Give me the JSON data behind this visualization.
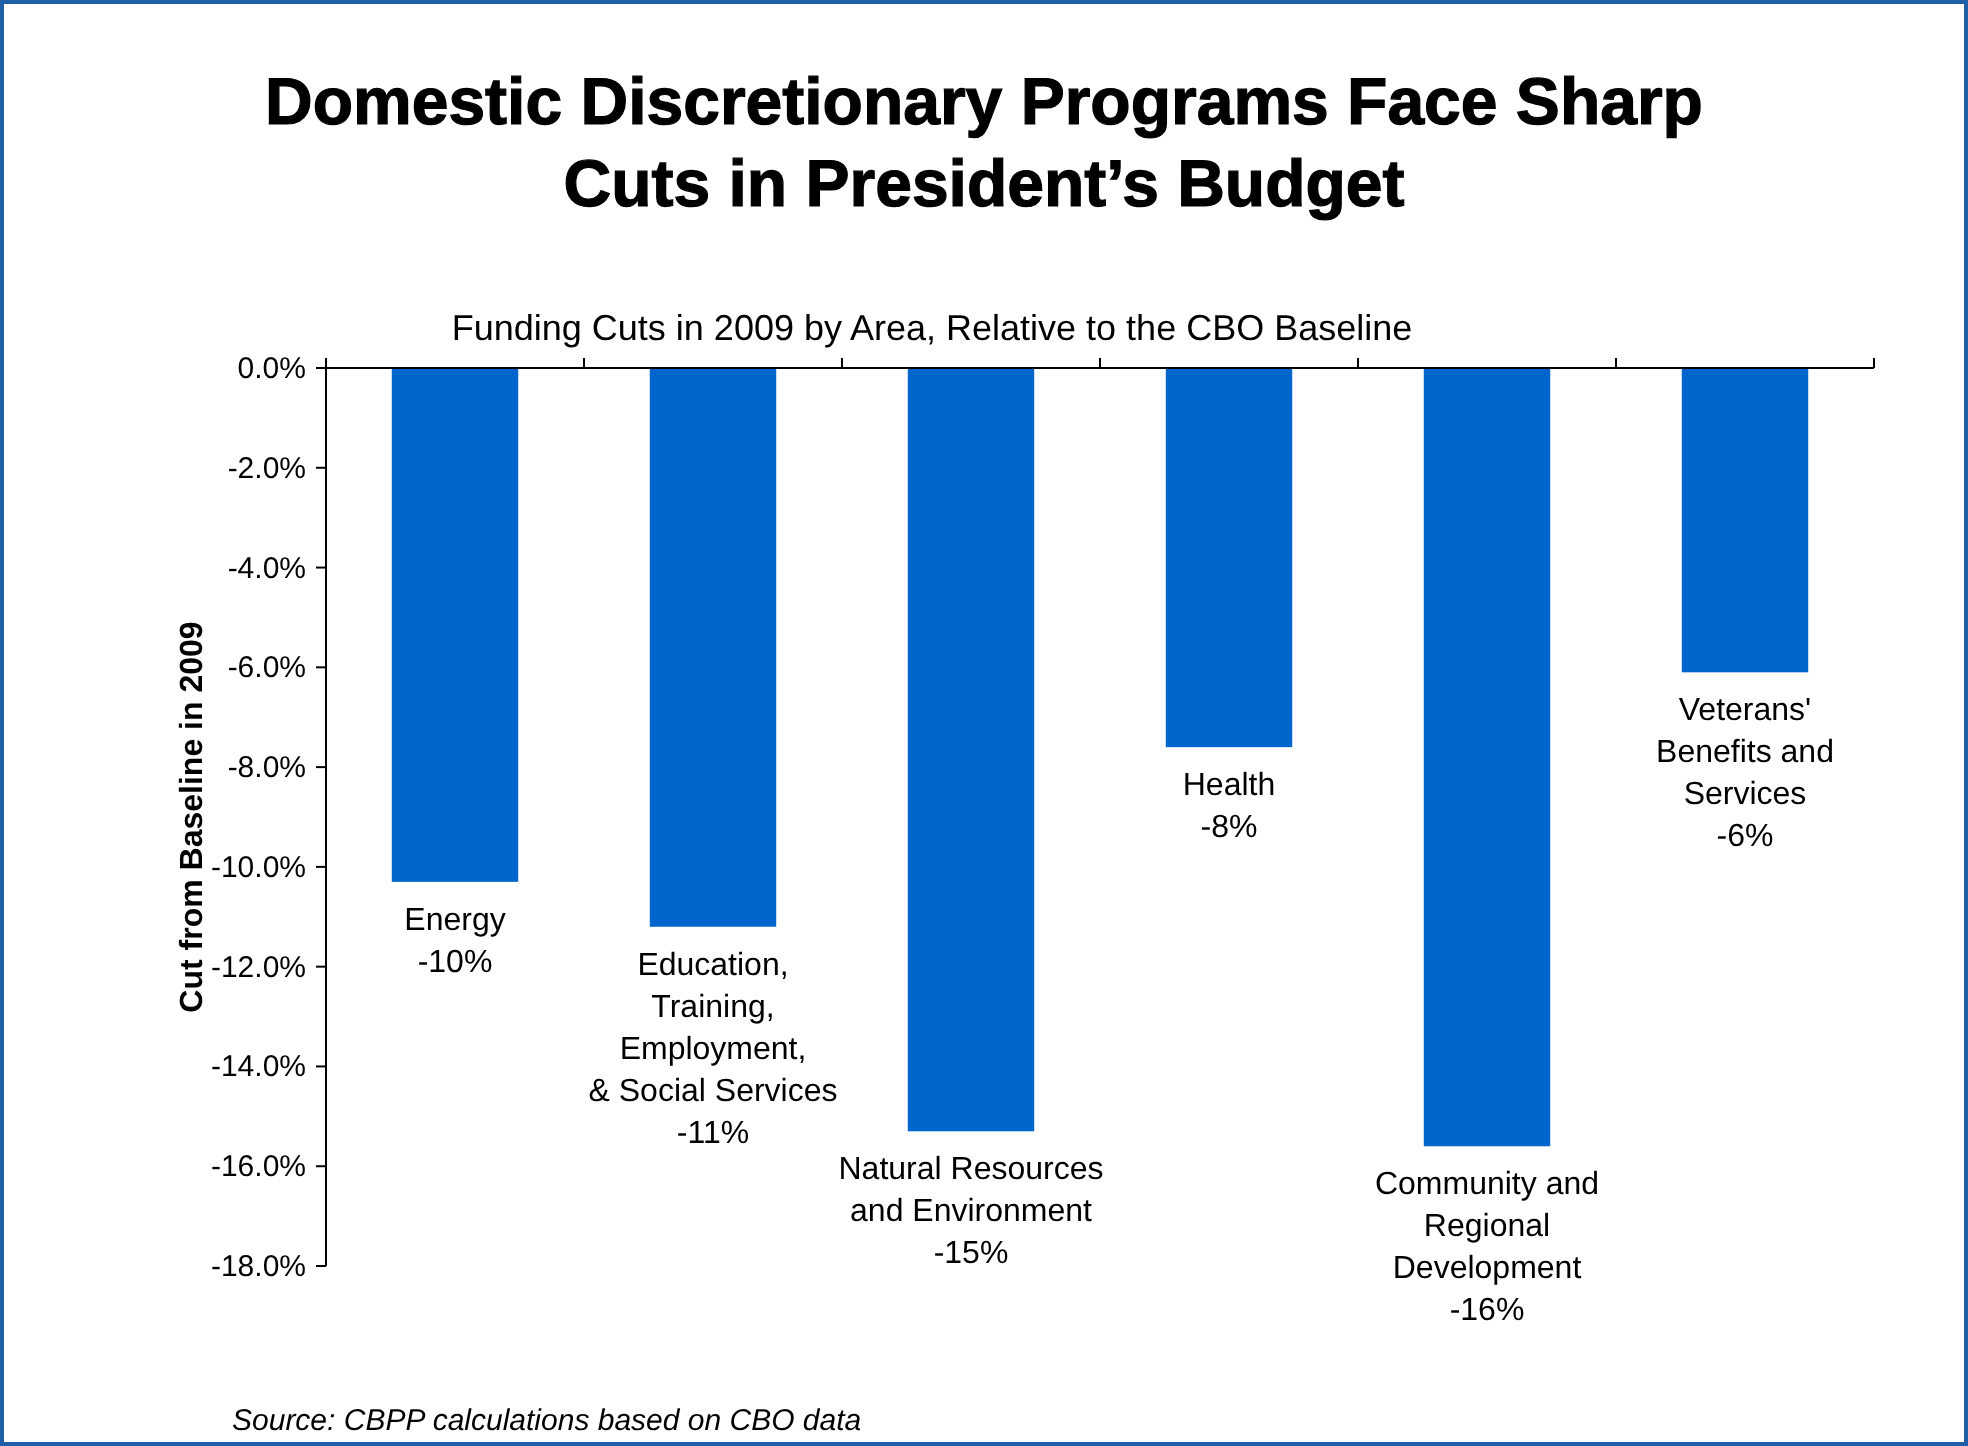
{
  "chart_data": {
    "type": "bar",
    "title": "Domestic Discretionary Programs Face Sharp\nCuts in President’s Budget",
    "subtitle": "Funding Cuts in 2009 by Area, Relative to the CBO Baseline",
    "ylabel": "Cut from Baseline in 2009",
    "categories": [
      null,
      null,
      null,
      null,
      null,
      null
    ],
    "values": [
      -10.3,
      -11.2,
      -15.3,
      -7.6,
      -15.6,
      -6.1
    ],
    "value_labels": [
      "Energy\n-10%",
      "Education,\nTraining,\nEmployment,\n& Social Services\n-11%",
      "Natural Resources\nand Environment\n-15%",
      "Health\n-8%",
      "Community and\nRegional\nDevelopment\n-16%",
      "Veterans'\nBenefits and\nServices\n-6%"
    ],
    "color": "#0066cc",
    "ylim": [
      -18,
      0
    ],
    "yticks": [
      {
        "value": 0,
        "label": "0.0%"
      },
      {
        "value": -2,
        "label": "-2.0%"
      },
      {
        "value": -4,
        "label": "-4.0%"
      },
      {
        "value": -6,
        "label": "-6.0%"
      },
      {
        "value": -8,
        "label": "-8.0%"
      },
      {
        "value": -10,
        "label": "-10.0%"
      },
      {
        "value": -12,
        "label": "-12.0%"
      },
      {
        "value": -14,
        "label": "-14.0%"
      },
      {
        "value": -16,
        "label": "-16.0%"
      },
      {
        "value": -18,
        "label": "-18.0%"
      }
    ],
    "grid": false,
    "legend": false,
    "annotations": [
      "Source:  CBPP calculations based on CBO data"
    ]
  }
}
